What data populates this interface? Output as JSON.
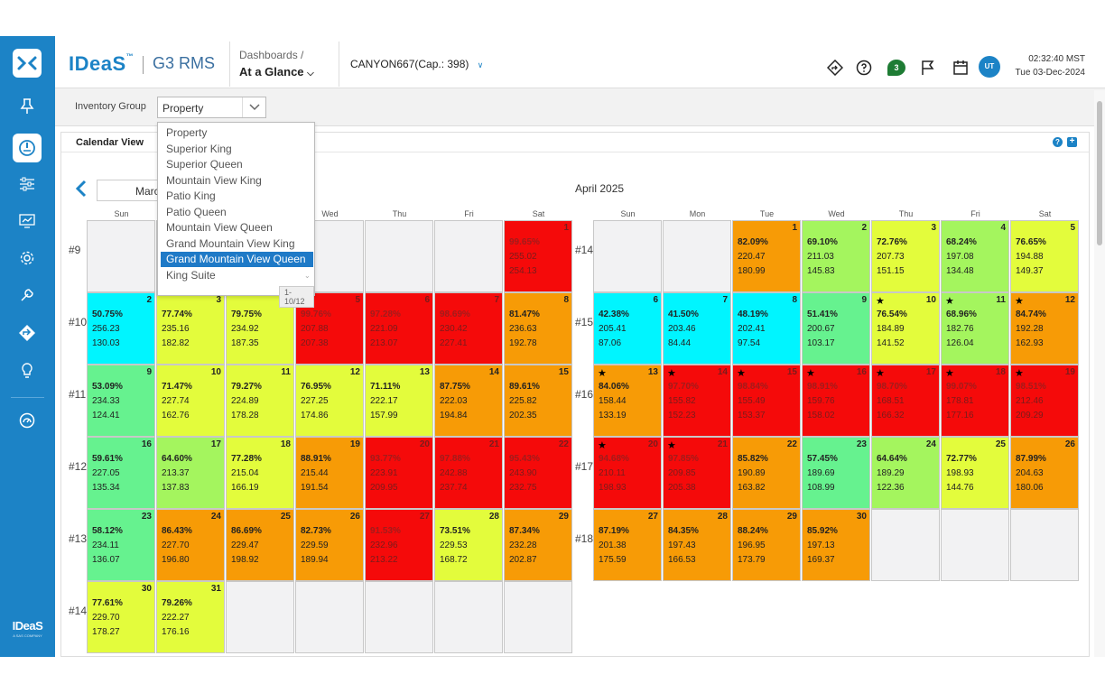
{
  "brand": {
    "name": "IDeaS",
    "tm": "™",
    "product": "G3 RMS"
  },
  "header": {
    "dashboards_label": "Dashboards /",
    "dashboard_selected": "At a Glance",
    "property_selector": "CANYON667(Cap.: 398)",
    "notification_count": "3",
    "avatar_initials": "UT",
    "time": "02:32:40 MST",
    "date": "Tue 03-Dec-2024"
  },
  "sidebar": {
    "brand": "IDeaS",
    "brand_sub": "A SAS COMPANY"
  },
  "toolbar": {
    "inventory_group_label": "Inventory Group",
    "inventory_group_value": "Property"
  },
  "dropdown": {
    "options": [
      "Property",
      "Superior King",
      "Superior Queen",
      "Mountain View King",
      "Patio King",
      "Patio Queen",
      "Mountain View Queen",
      "Grand Mountain View King",
      "Grand Mountain View Queen",
      "King Suite"
    ],
    "highlighted_index": 8,
    "count": "1-10/12"
  },
  "panel": {
    "title": "Calendar View",
    "prev_month_label": "March",
    "month_title": "April 2025"
  },
  "colors": {
    "cyan": "#00f5ff",
    "green": "#66f28f",
    "lightgreen": "#a4f55e",
    "yellow": "#e3fc3c",
    "orange": "#f79b06",
    "red": "#f50a0a",
    "empty": "#f2f2f3"
  },
  "weekday_labels": [
    "Sun",
    "Mon",
    "Tue",
    "Wed",
    "Thu",
    "Fri",
    "Sat"
  ],
  "march": {
    "week_labels": [
      "#9",
      "#10",
      "#11",
      "#12",
      "#13",
      "#14"
    ],
    "weeks": [
      [
        null,
        null,
        null,
        null,
        null,
        null,
        {
          "day": "1",
          "occ": "99.65%",
          "adr": "255.02",
          "rp": "254.13",
          "c": "red"
        }
      ],
      [
        {
          "day": "2",
          "occ": "50.75%",
          "adr": "256.23",
          "rp": "130.03",
          "c": "cyan"
        },
        {
          "day": "3",
          "occ": "77.74%",
          "adr": "235.16",
          "rp": "182.82",
          "c": "yellow"
        },
        {
          "day": "4",
          "occ": "79.75%",
          "adr": "234.92",
          "rp": "187.35",
          "c": "yellow"
        },
        {
          "day": "5",
          "occ": "99.76%",
          "adr": "207.88",
          "rp": "207.38",
          "c": "red"
        },
        {
          "day": "6",
          "occ": "97.28%",
          "adr": "221.09",
          "rp": "213.07",
          "c": "red"
        },
        {
          "day": "7",
          "occ": "98.69%",
          "adr": "230.42",
          "rp": "227.41",
          "c": "red"
        },
        {
          "day": "8",
          "occ": "81.47%",
          "adr": "236.63",
          "rp": "192.78",
          "c": "orange"
        }
      ],
      [
        {
          "day": "9",
          "occ": "53.09%",
          "adr": "234.33",
          "rp": "124.41",
          "c": "green"
        },
        {
          "day": "10",
          "occ": "71.47%",
          "adr": "227.74",
          "rp": "162.76",
          "c": "yellow"
        },
        {
          "day": "11",
          "occ": "79.27%",
          "adr": "224.89",
          "rp": "178.28",
          "c": "yellow"
        },
        {
          "day": "12",
          "occ": "76.95%",
          "adr": "227.25",
          "rp": "174.86",
          "c": "yellow"
        },
        {
          "day": "13",
          "occ": "71.11%",
          "adr": "222.17",
          "rp": "157.99",
          "c": "yellow"
        },
        {
          "day": "14",
          "occ": "87.75%",
          "adr": "222.03",
          "rp": "194.84",
          "c": "orange"
        },
        {
          "day": "15",
          "occ": "89.61%",
          "adr": "225.82",
          "rp": "202.35",
          "c": "orange"
        }
      ],
      [
        {
          "day": "16",
          "occ": "59.61%",
          "adr": "227.05",
          "rp": "135.34",
          "c": "green"
        },
        {
          "day": "17",
          "occ": "64.60%",
          "adr": "213.37",
          "rp": "137.83",
          "c": "lightgreen"
        },
        {
          "day": "18",
          "occ": "77.28%",
          "adr": "215.04",
          "rp": "166.19",
          "c": "yellow"
        },
        {
          "day": "19",
          "occ": "88.91%",
          "adr": "215.44",
          "rp": "191.54",
          "c": "orange"
        },
        {
          "day": "20",
          "occ": "93.77%",
          "adr": "223.91",
          "rp": "209.95",
          "c": "red"
        },
        {
          "day": "21",
          "occ": "97.88%",
          "adr": "242.88",
          "rp": "237.74",
          "c": "red"
        },
        {
          "day": "22",
          "occ": "95.43%",
          "adr": "243.90",
          "rp": "232.75",
          "c": "red"
        }
      ],
      [
        {
          "day": "23",
          "occ": "58.12%",
          "adr": "234.11",
          "rp": "136.07",
          "c": "green"
        },
        {
          "day": "24",
          "occ": "86.43%",
          "adr": "227.70",
          "rp": "196.80",
          "c": "orange"
        },
        {
          "day": "25",
          "occ": "86.69%",
          "adr": "229.47",
          "rp": "198.92",
          "c": "orange"
        },
        {
          "day": "26",
          "occ": "82.73%",
          "adr": "229.59",
          "rp": "189.94",
          "c": "orange"
        },
        {
          "day": "27",
          "occ": "91.53%",
          "adr": "232.96",
          "rp": "213.22",
          "c": "red"
        },
        {
          "day": "28",
          "occ": "73.51%",
          "adr": "229.53",
          "rp": "168.72",
          "c": "yellow"
        },
        {
          "day": "29",
          "occ": "87.34%",
          "adr": "232.28",
          "rp": "202.87",
          "c": "orange"
        }
      ],
      [
        {
          "day": "30",
          "occ": "77.61%",
          "adr": "229.70",
          "rp": "178.27",
          "c": "yellow"
        },
        {
          "day": "31",
          "occ": "79.26%",
          "adr": "222.27",
          "rp": "176.16",
          "c": "yellow"
        },
        null,
        null,
        null,
        null,
        null
      ]
    ]
  },
  "april": {
    "week_labels": [
      "#14",
      "#15",
      "#16",
      "#17",
      "#18"
    ],
    "weeks": [
      [
        null,
        null,
        {
          "day": "1",
          "occ": "82.09%",
          "adr": "220.47",
          "rp": "180.99",
          "c": "orange"
        },
        {
          "day": "2",
          "occ": "69.10%",
          "adr": "211.03",
          "rp": "145.83",
          "c": "lightgreen"
        },
        {
          "day": "3",
          "occ": "72.76%",
          "adr": "207.73",
          "rp": "151.15",
          "c": "yellow"
        },
        {
          "day": "4",
          "occ": "68.24%",
          "adr": "197.08",
          "rp": "134.48",
          "c": "lightgreen"
        },
        {
          "day": "5",
          "occ": "76.65%",
          "adr": "194.88",
          "rp": "149.37",
          "c": "yellow"
        }
      ],
      [
        {
          "day": "6",
          "occ": "42.38%",
          "adr": "205.41",
          "rp": "87.06",
          "c": "cyan"
        },
        {
          "day": "7",
          "occ": "41.50%",
          "adr": "203.46",
          "rp": "84.44",
          "c": "cyan"
        },
        {
          "day": "8",
          "occ": "48.19%",
          "adr": "202.41",
          "rp": "97.54",
          "c": "cyan"
        },
        {
          "day": "9",
          "occ": "51.41%",
          "adr": "200.67",
          "rp": "103.17",
          "c": "green"
        },
        {
          "day": "10",
          "occ": "76.54%",
          "adr": "184.89",
          "rp": "141.52",
          "c": "yellow",
          "star": true
        },
        {
          "day": "11",
          "occ": "68.96%",
          "adr": "182.76",
          "rp": "126.04",
          "c": "lightgreen",
          "star": true
        },
        {
          "day": "12",
          "occ": "84.74%",
          "adr": "192.28",
          "rp": "162.93",
          "c": "orange",
          "star": true
        }
      ],
      [
        {
          "day": "13",
          "occ": "84.06%",
          "adr": "158.44",
          "rp": "133.19",
          "c": "orange",
          "star": true
        },
        {
          "day": "14",
          "occ": "97.70%",
          "adr": "155.82",
          "rp": "152.23",
          "c": "red",
          "star": true
        },
        {
          "day": "15",
          "occ": "98.84%",
          "adr": "155.49",
          "rp": "153.37",
          "c": "red",
          "star": true
        },
        {
          "day": "16",
          "occ": "98.91%",
          "adr": "159.76",
          "rp": "158.02",
          "c": "red",
          "star": true
        },
        {
          "day": "17",
          "occ": "98.70%",
          "adr": "168.51",
          "rp": "166.32",
          "c": "red",
          "star": true
        },
        {
          "day": "18",
          "occ": "99.07%",
          "adr": "178.81",
          "rp": "177.16",
          "c": "red",
          "star": true
        },
        {
          "day": "19",
          "occ": "98.51%",
          "adr": "212.46",
          "rp": "209.29",
          "c": "red",
          "star": true
        }
      ],
      [
        {
          "day": "20",
          "occ": "94.68%",
          "adr": "210.11",
          "rp": "198.93",
          "c": "red",
          "star": true
        },
        {
          "day": "21",
          "occ": "97.85%",
          "adr": "209.85",
          "rp": "205.38",
          "c": "red",
          "star": true
        },
        {
          "day": "22",
          "occ": "85.82%",
          "adr": "190.89",
          "rp": "163.82",
          "c": "orange"
        },
        {
          "day": "23",
          "occ": "57.45%",
          "adr": "189.69",
          "rp": "108.99",
          "c": "green"
        },
        {
          "day": "24",
          "occ": "64.64%",
          "adr": "189.29",
          "rp": "122.36",
          "c": "lightgreen"
        },
        {
          "day": "25",
          "occ": "72.77%",
          "adr": "198.93",
          "rp": "144.76",
          "c": "yellow"
        },
        {
          "day": "26",
          "occ": "87.99%",
          "adr": "204.63",
          "rp": "180.06",
          "c": "orange"
        }
      ],
      [
        {
          "day": "27",
          "occ": "87.19%",
          "adr": "201.38",
          "rp": "175.59",
          "c": "orange"
        },
        {
          "day": "28",
          "occ": "84.35%",
          "adr": "197.43",
          "rp": "166.53",
          "c": "orange"
        },
        {
          "day": "29",
          "occ": "88.24%",
          "adr": "196.95",
          "rp": "173.79",
          "c": "orange"
        },
        {
          "day": "30",
          "occ": "85.92%",
          "adr": "197.13",
          "rp": "169.37",
          "c": "orange"
        },
        null,
        null,
        null
      ]
    ]
  }
}
